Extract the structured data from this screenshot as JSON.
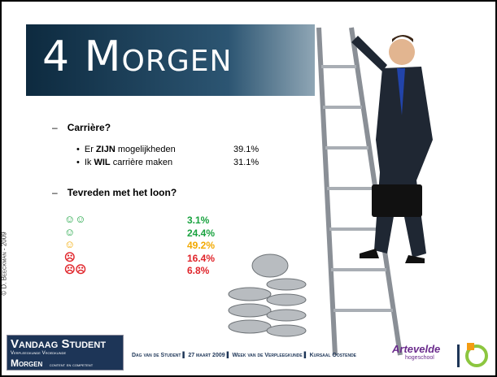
{
  "title": "4 Morgen",
  "sections": [
    {
      "heading": "Carrière?",
      "items": [
        {
          "parts": [
            "Er ",
            "ZIJN",
            " mogelijkheden"
          ],
          "value": "39.1%"
        },
        {
          "parts": [
            "Ik ",
            "WIL",
            " carrière maken"
          ],
          "value": "31.1%"
        }
      ]
    },
    {
      "heading": "Tevreden met het loon?",
      "items": [
        {
          "icon": "☺☺",
          "value": "3.1%"
        },
        {
          "icon": "☺",
          "value": "24.4%"
        },
        {
          "icon": "☺",
          "value": "49.2%"
        },
        {
          "icon": "☹",
          "value": "16.4%"
        },
        {
          "icon": "☹☹",
          "value": "6.8%"
        }
      ]
    }
  ],
  "copyright": "© D. Beeckman - 2009",
  "logo": {
    "line1": "Vandaag Student",
    "line2": "Verpleegkunde Vroedkunde",
    "line3": "Morgen",
    "line4": "content en competent"
  },
  "footer": [
    "Dag van de Student",
    "27 maart 2009",
    "Week van de Verpleegkunde",
    "Kursaal Oostende"
  ],
  "school": {
    "name": "Artevelde",
    "sub": "hogeschool"
  }
}
